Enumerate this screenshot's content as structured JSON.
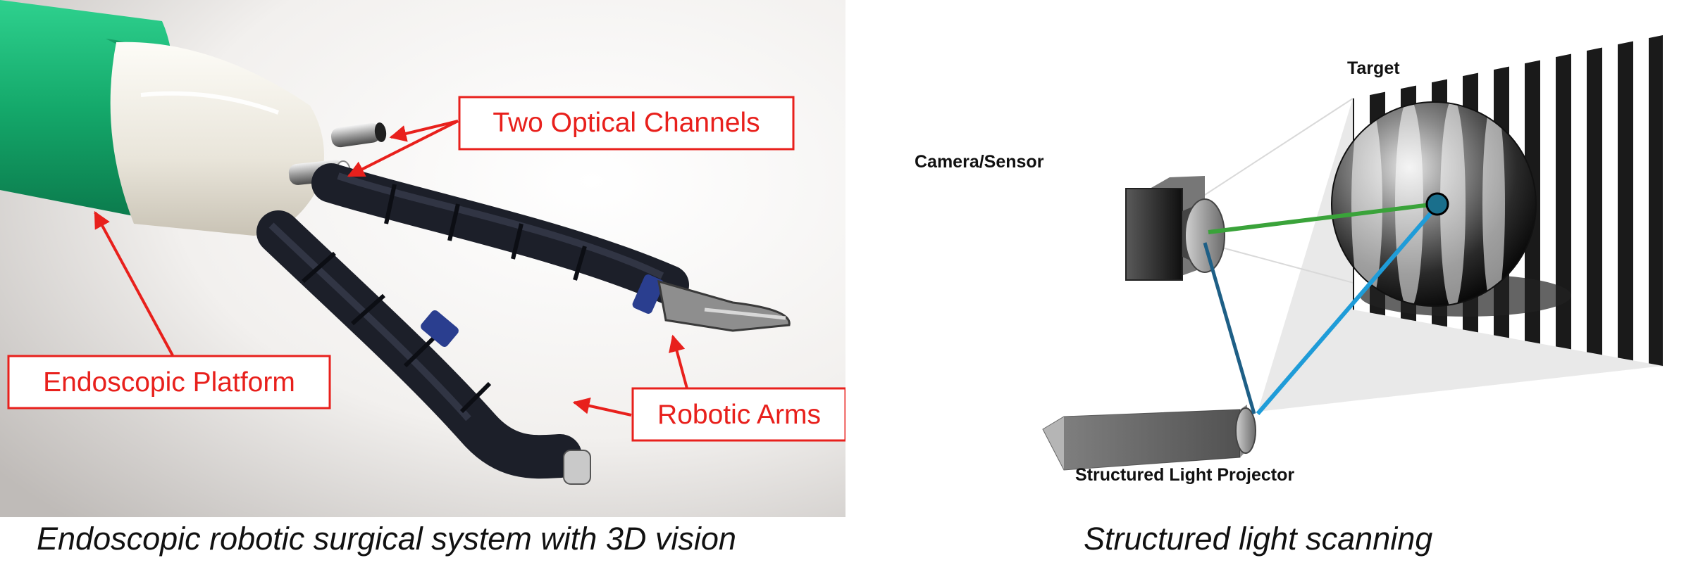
{
  "left_figure": {
    "labels": {
      "optical_channels": "Two Optical Channels",
      "endoscopic_platform": "Endoscopic Platform",
      "robotic_arms": "Robotic Arms"
    },
    "caption": "Endoscopic robotic surgical system with 3D vision",
    "colors": {
      "annotation": "#e8201c",
      "tube": "#1aa36e",
      "tip": "#ece8dd",
      "arm": "#1c1f29"
    }
  },
  "right_figure": {
    "labels": {
      "target": "Target",
      "camera": "Camera/Sensor",
      "projector": "Structured Light Projector"
    },
    "caption": "Structured light scanning",
    "colors": {
      "camera_ray": "#3aa33a",
      "projector_ray": "#1f9cd8",
      "baseline": "#1e5f86",
      "point": "#1a6f8c"
    }
  }
}
